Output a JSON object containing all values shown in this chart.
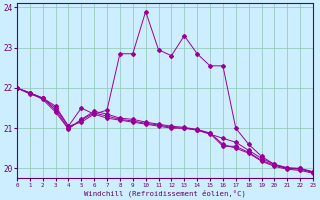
{
  "xlabel": "Windchill (Refroidissement éolien,°C)",
  "bg_color": "#cceeff",
  "grid_color": "#99ccbb",
  "line_color": "#990099",
  "x_ticks": [
    0,
    1,
    2,
    3,
    4,
    5,
    6,
    7,
    8,
    9,
    10,
    11,
    12,
    13,
    14,
    15,
    16,
    17,
    18,
    19,
    20,
    21,
    22,
    23
  ],
  "y_ticks": [
    20,
    21,
    22,
    23,
    24
  ],
  "xlim": [
    0,
    23
  ],
  "ylim": [
    19.75,
    24.1
  ],
  "series_main": {
    "x": [
      0,
      1,
      2,
      3,
      4,
      5,
      6,
      7,
      8,
      9,
      10,
      11,
      12,
      13,
      14,
      15,
      16,
      17,
      18,
      19,
      20,
      21,
      22,
      23
    ],
    "y": [
      22.0,
      21.85,
      21.75,
      21.55,
      21.05,
      21.5,
      21.35,
      21.45,
      22.85,
      22.85,
      23.9,
      22.95,
      22.8,
      23.3,
      22.85,
      22.55,
      22.55,
      21.0,
      20.6,
      20.3,
      20.1,
      20.0,
      20.0,
      19.9
    ]
  },
  "series_lower1": {
    "x": [
      0,
      1,
      2,
      3,
      4,
      5,
      6,
      7,
      8,
      9,
      10,
      11,
      12,
      13,
      14,
      15,
      16,
      17,
      18,
      19,
      20,
      21,
      22,
      23
    ],
    "y": [
      22.0,
      21.88,
      21.75,
      21.5,
      21.05,
      21.15,
      21.35,
      21.25,
      21.2,
      21.15,
      21.1,
      21.05,
      21.0,
      21.0,
      20.95,
      20.85,
      20.75,
      20.65,
      20.45,
      20.25,
      20.1,
      20.02,
      20.0,
      19.92
    ]
  },
  "series_lower2": {
    "x": [
      0,
      1,
      2,
      3,
      4,
      5,
      6,
      7,
      8,
      9,
      10,
      11,
      12,
      13,
      14,
      15,
      16,
      17,
      18,
      19,
      20,
      21,
      22,
      23
    ],
    "y": [
      22.0,
      21.88,
      21.75,
      21.45,
      21.0,
      21.2,
      21.38,
      21.3,
      21.22,
      21.18,
      21.12,
      21.08,
      21.02,
      21.0,
      20.96,
      20.87,
      20.55,
      20.55,
      20.4,
      20.2,
      20.08,
      20.0,
      19.98,
      19.9
    ]
  },
  "series_lower3": {
    "x": [
      0,
      1,
      2,
      3,
      4,
      5,
      6,
      7,
      8,
      9,
      10,
      11,
      12,
      13,
      14,
      15,
      16,
      17,
      18,
      19,
      20,
      21,
      22,
      23
    ],
    "y": [
      22.0,
      21.87,
      21.72,
      21.4,
      20.98,
      21.22,
      21.42,
      21.35,
      21.25,
      21.22,
      21.15,
      21.1,
      21.05,
      21.02,
      20.97,
      20.88,
      20.6,
      20.5,
      20.38,
      20.18,
      20.05,
      19.98,
      19.95,
      19.88
    ]
  }
}
